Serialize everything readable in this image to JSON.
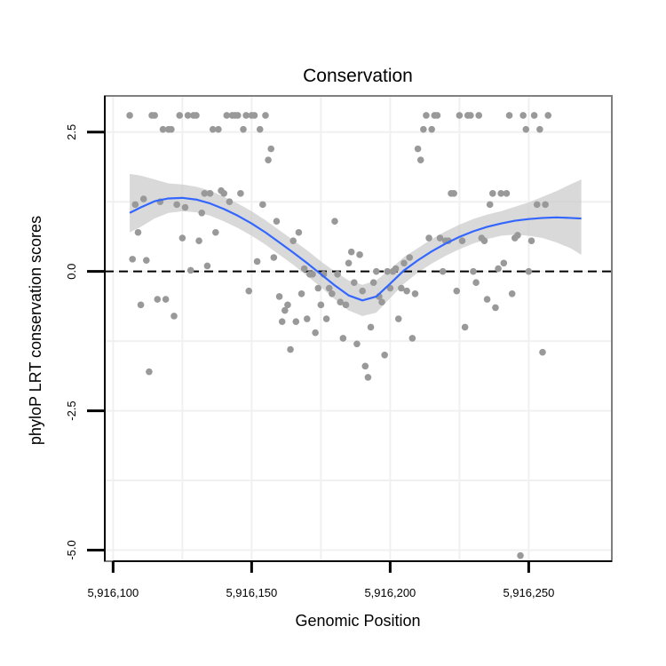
{
  "chart_data": {
    "type": "scatter",
    "title": "Conservation",
    "xlabel": "Genomic Position",
    "ylabel": "phyloP LRT conservation scores",
    "xlim": [
      5916097,
      5916280
    ],
    "ylim": [
      -5.2,
      3.15
    ],
    "x_ticks": [
      5916100,
      5916150,
      5916200,
      5916250
    ],
    "x_tick_labels": [
      "5,916,100",
      "5,916,150",
      "5,916,200",
      "5,916,250"
    ],
    "y_ticks": [
      -5.0,
      -2.5,
      0.0,
      2.5
    ],
    "y_tick_labels": [
      "-5.0",
      "-2.5",
      "0.0",
      "2.5"
    ],
    "reference_line": {
      "y": 0,
      "style": "dashed"
    },
    "grid": true,
    "colors": {
      "points": "#999999",
      "smooth_line": "#3366ff",
      "ribbon": "#cccccc",
      "frame": "#7f7f7f"
    },
    "series": [
      {
        "type": "scatter",
        "points": [
          [
            5916106,
            2.8
          ],
          [
            5916107,
            0.22
          ],
          [
            5916108,
            1.2
          ],
          [
            5916109,
            0.7
          ],
          [
            5916110,
            -0.6
          ],
          [
            5916111,
            1.3
          ],
          [
            5916112,
            0.2
          ],
          [
            5916113,
            -1.8
          ],
          [
            5916114,
            2.8
          ],
          [
            5916115,
            2.8
          ],
          [
            5916116,
            -0.5
          ],
          [
            5916117,
            1.25
          ],
          [
            5916118,
            2.55
          ],
          [
            5916119,
            -0.5
          ],
          [
            5916120,
            2.55
          ],
          [
            5916121,
            2.55
          ],
          [
            5916122,
            -0.8
          ],
          [
            5916123,
            1.2
          ],
          [
            5916124,
            2.8
          ],
          [
            5916125,
            0.6
          ],
          [
            5916126,
            1.15
          ],
          [
            5916127,
            2.8
          ],
          [
            5916128,
            0.02
          ],
          [
            5916129,
            2.8
          ],
          [
            5916130,
            2.8
          ],
          [
            5916131,
            0.55
          ],
          [
            5916132,
            1.05
          ],
          [
            5916133,
            1.4
          ],
          [
            5916134,
            0.1
          ],
          [
            5916135,
            1.4
          ],
          [
            5916136,
            2.55
          ],
          [
            5916137,
            0.7
          ],
          [
            5916138,
            2.55
          ],
          [
            5916139,
            1.45
          ],
          [
            5916140,
            1.4
          ],
          [
            5916141,
            2.8
          ],
          [
            5916142,
            1.25
          ],
          [
            5916143,
            2.8
          ],
          [
            5916144,
            2.8
          ],
          [
            5916145,
            2.8
          ],
          [
            5916146,
            1.4
          ],
          [
            5916147,
            2.55
          ],
          [
            5916148,
            2.8
          ],
          [
            5916149,
            -0.35
          ],
          [
            5916150,
            2.8
          ],
          [
            5916151,
            2.8
          ],
          [
            5916152,
            0.18
          ],
          [
            5916153,
            2.55
          ],
          [
            5916154,
            1.2
          ],
          [
            5916155,
            2.8
          ],
          [
            5916156,
            2.0
          ],
          [
            5916157,
            2.2
          ],
          [
            5916158,
            0.25
          ],
          [
            5916159,
            0.9
          ],
          [
            5916160,
            -0.45
          ],
          [
            5916161,
            -0.9
          ],
          [
            5916162,
            -0.7
          ],
          [
            5916163,
            -0.6
          ],
          [
            5916164,
            -1.4
          ],
          [
            5916165,
            0.55
          ],
          [
            5916166,
            -0.9
          ],
          [
            5916167,
            0.7
          ],
          [
            5916168,
            -0.4
          ],
          [
            5916169,
            0.05
          ],
          [
            5916170,
            -0.85
          ],
          [
            5916171,
            -0.05
          ],
          [
            5916172,
            -0.05
          ],
          [
            5916173,
            -1.1
          ],
          [
            5916174,
            -0.3
          ],
          [
            5916175,
            -0.6
          ],
          [
            5916176,
            -0.05
          ],
          [
            5916177,
            -0.85
          ],
          [
            5916178,
            -0.3
          ],
          [
            5916179,
            -0.4
          ],
          [
            5916180,
            0.9
          ],
          [
            5916181,
            -0.05
          ],
          [
            5916182,
            -0.55
          ],
          [
            5916183,
            -1.2
          ],
          [
            5916184,
            -0.6
          ],
          [
            5916185,
            0.15
          ],
          [
            5916186,
            0.35
          ],
          [
            5916187,
            -0.2
          ],
          [
            5916188,
            -1.3
          ],
          [
            5916189,
            0.3
          ],
          [
            5916190,
            -0.35
          ],
          [
            5916191,
            -1.7
          ],
          [
            5916192,
            -1.9
          ],
          [
            5916193,
            -1.0
          ],
          [
            5916194,
            -0.2
          ],
          [
            5916195,
            0.0
          ],
          [
            5916196,
            -0.45
          ],
          [
            5916197,
            -0.55
          ],
          [
            5916198,
            -1.5
          ],
          [
            5916199,
            0.0
          ],
          [
            5916200,
            -0.3
          ],
          [
            5916201,
            0.0
          ],
          [
            5916202,
            0.05
          ],
          [
            5916203,
            -0.85
          ],
          [
            5916204,
            -0.3
          ],
          [
            5916205,
            0.15
          ],
          [
            5916206,
            -0.35
          ],
          [
            5916207,
            0.25
          ],
          [
            5916208,
            -1.2
          ],
          [
            5916209,
            -0.4
          ],
          [
            5916210,
            2.2
          ],
          [
            5916211,
            2.0
          ],
          [
            5916212,
            2.55
          ],
          [
            5916213,
            2.8
          ],
          [
            5916214,
            0.6
          ],
          [
            5916215,
            2.55
          ],
          [
            5916216,
            2.8
          ],
          [
            5916217,
            2.8
          ],
          [
            5916218,
            0.6
          ],
          [
            5916219,
            0.0
          ],
          [
            5916220,
            0.55
          ],
          [
            5916221,
            0.55
          ],
          [
            5916222,
            1.4
          ],
          [
            5916223,
            1.4
          ],
          [
            5916224,
            -0.35
          ],
          [
            5916225,
            2.8
          ],
          [
            5916226,
            0.55
          ],
          [
            5916227,
            -1.0
          ],
          [
            5916228,
            2.8
          ],
          [
            5916229,
            2.8
          ],
          [
            5916230,
            0.0
          ],
          [
            5916231,
            -0.2
          ],
          [
            5916232,
            2.8
          ],
          [
            5916233,
            0.6
          ],
          [
            5916234,
            0.55
          ],
          [
            5916235,
            -0.5
          ],
          [
            5916236,
            1.2
          ],
          [
            5916237,
            1.4
          ],
          [
            5916238,
            -0.65
          ],
          [
            5916239,
            0.05
          ],
          [
            5916240,
            1.4
          ],
          [
            5916241,
            0.15
          ],
          [
            5916242,
            1.4
          ],
          [
            5916243,
            2.8
          ],
          [
            5916244,
            -0.4
          ],
          [
            5916245,
            0.6
          ],
          [
            5916246,
            0.65
          ],
          [
            5916247,
            -5.1
          ],
          [
            5916248,
            2.8
          ],
          [
            5916249,
            2.55
          ],
          [
            5916250,
            0.0
          ],
          [
            5916251,
            0.55
          ],
          [
            5916252,
            2.8
          ],
          [
            5916253,
            1.2
          ],
          [
            5916254,
            2.55
          ],
          [
            5916255,
            -1.45
          ],
          [
            5916256,
            1.2
          ],
          [
            5916257,
            2.8
          ]
        ]
      },
      {
        "type": "smooth",
        "fit": [
          [
            5916106,
            1.05
          ],
          [
            5916110,
            1.15
          ],
          [
            5916115,
            1.26
          ],
          [
            5916120,
            1.31
          ],
          [
            5916125,
            1.32
          ],
          [
            5916130,
            1.29
          ],
          [
            5916135,
            1.22
          ],
          [
            5916140,
            1.12
          ],
          [
            5916145,
            1.0
          ],
          [
            5916150,
            0.86
          ],
          [
            5916155,
            0.7
          ],
          [
            5916160,
            0.52
          ],
          [
            5916165,
            0.34
          ],
          [
            5916170,
            0.15
          ],
          [
            5916175,
            -0.05
          ],
          [
            5916180,
            -0.25
          ],
          [
            5916185,
            -0.43
          ],
          [
            5916190,
            -0.52
          ],
          [
            5916195,
            -0.45
          ],
          [
            5916200,
            -0.22
          ],
          [
            5916205,
            0.02
          ],
          [
            5916210,
            0.2
          ],
          [
            5916215,
            0.36
          ],
          [
            5916220,
            0.5
          ],
          [
            5916225,
            0.62
          ],
          [
            5916230,
            0.72
          ],
          [
            5916235,
            0.8
          ],
          [
            5916240,
            0.86
          ],
          [
            5916245,
            0.91
          ],
          [
            5916250,
            0.94
          ],
          [
            5916255,
            0.96
          ],
          [
            5916260,
            0.97
          ],
          [
            5916265,
            0.96
          ],
          [
            5916269,
            0.95
          ]
        ],
        "band": [
          [
            5916106,
            0.7,
            1.75
          ],
          [
            5916110,
            0.8,
            1.72
          ],
          [
            5916115,
            0.95,
            1.65
          ],
          [
            5916120,
            1.05,
            1.58
          ],
          [
            5916125,
            1.08,
            1.56
          ],
          [
            5916130,
            1.06,
            1.52
          ],
          [
            5916135,
            1.0,
            1.45
          ],
          [
            5916140,
            0.9,
            1.34
          ],
          [
            5916145,
            0.78,
            1.22
          ],
          [
            5916150,
            0.64,
            1.08
          ],
          [
            5916155,
            0.48,
            0.92
          ],
          [
            5916160,
            0.3,
            0.74
          ],
          [
            5916165,
            0.12,
            0.56
          ],
          [
            5916170,
            -0.08,
            0.38
          ],
          [
            5916175,
            -0.28,
            0.18
          ],
          [
            5916180,
            -0.5,
            0.0
          ],
          [
            5916185,
            -0.7,
            -0.16
          ],
          [
            5916190,
            -0.8,
            -0.24
          ],
          [
            5916195,
            -0.74,
            -0.16
          ],
          [
            5916200,
            -0.48,
            0.04
          ],
          [
            5916205,
            -0.22,
            0.26
          ],
          [
            5916210,
            -0.02,
            0.42
          ],
          [
            5916215,
            0.14,
            0.58
          ],
          [
            5916220,
            0.28,
            0.72
          ],
          [
            5916225,
            0.4,
            0.84
          ],
          [
            5916230,
            0.5,
            0.94
          ],
          [
            5916235,
            0.58,
            1.02
          ],
          [
            5916240,
            0.64,
            1.08
          ],
          [
            5916245,
            0.66,
            1.16
          ],
          [
            5916250,
            0.64,
            1.24
          ],
          [
            5916255,
            0.6,
            1.34
          ],
          [
            5916260,
            0.52,
            1.44
          ],
          [
            5916265,
            0.42,
            1.56
          ],
          [
            5916269,
            0.3,
            1.65
          ]
        ]
      }
    ]
  }
}
